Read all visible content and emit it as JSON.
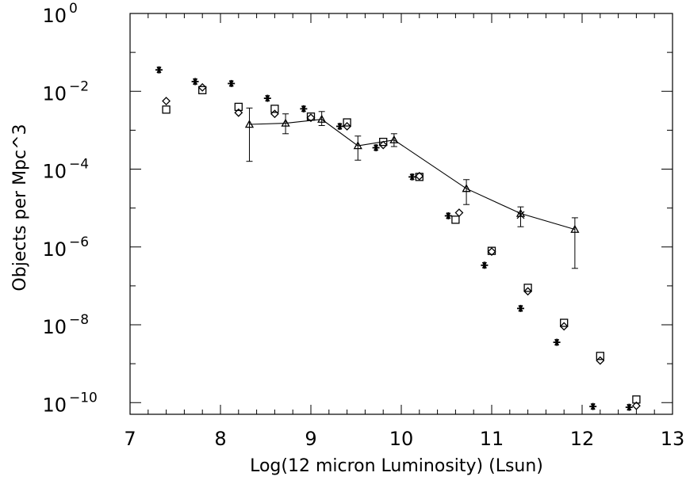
{
  "chart_data": {
    "type": "scatter",
    "xlabel": "Log(12 micron Luminosity) (Lsun)",
    "ylabel": "Objects per Mpc^3",
    "xlim": [
      7,
      13
    ],
    "ylim": [
      -10.3,
      0
    ],
    "yscale": "log10",
    "grid": false,
    "x_ticks": [
      "7",
      "8",
      "9",
      "10",
      "11",
      "12",
      "13"
    ],
    "y_ticks": [
      {
        "base": "10",
        "exp": "0",
        "value": 0
      },
      {
        "base": "10",
        "exp": "−2",
        "value": -2
      },
      {
        "base": "10",
        "exp": "−4",
        "value": -4
      },
      {
        "base": "10",
        "exp": "−6",
        "value": -6
      },
      {
        "base": "10",
        "exp": "−8",
        "value": -8
      },
      {
        "base": "10",
        "exp": "−10",
        "value": -10
      }
    ],
    "series": [
      {
        "marker": "asterisk",
        "points": [
          [
            7.32,
            -1.45
          ],
          [
            7.72,
            -1.75
          ],
          [
            8.12,
            -1.8
          ],
          [
            8.52,
            -2.18
          ],
          [
            8.92,
            -2.45
          ],
          [
            9.32,
            -2.9
          ],
          [
            9.72,
            -3.45
          ],
          [
            10.12,
            -4.2
          ],
          [
            10.52,
            -5.2
          ],
          [
            10.92,
            -6.47
          ],
          [
            11.32,
            -7.58
          ],
          [
            11.72,
            -8.45
          ],
          [
            12.12,
            -10.1
          ],
          [
            12.52,
            -10.12
          ]
        ]
      },
      {
        "marker": "diamond",
        "points": [
          [
            7.4,
            -2.25
          ],
          [
            7.8,
            -1.9
          ],
          [
            8.2,
            -2.55
          ],
          [
            8.6,
            -2.58
          ],
          [
            9.0,
            -2.68
          ],
          [
            9.4,
            -2.9
          ],
          [
            9.8,
            -3.38
          ],
          [
            10.2,
            -4.18
          ],
          [
            10.64,
            -5.12
          ],
          [
            11.0,
            -6.12
          ],
          [
            11.4,
            -7.14
          ],
          [
            11.8,
            -8.04
          ],
          [
            12.2,
            -8.92
          ],
          [
            12.6,
            -10.08
          ]
        ]
      },
      {
        "marker": "square",
        "points": [
          [
            7.4,
            -2.47
          ],
          [
            7.8,
            -1.97
          ],
          [
            8.2,
            -2.4
          ],
          [
            8.6,
            -2.45
          ],
          [
            9.0,
            -2.65
          ],
          [
            9.4,
            -2.8
          ],
          [
            9.8,
            -3.3
          ],
          [
            10.2,
            -4.2
          ],
          [
            10.6,
            -5.3
          ],
          [
            11.0,
            -6.1
          ],
          [
            11.4,
            -7.05
          ],
          [
            11.8,
            -7.95
          ],
          [
            12.2,
            -8.8
          ],
          [
            12.6,
            -9.92
          ]
        ]
      },
      {
        "marker": "triangle",
        "line": true,
        "points": [
          [
            8.32,
            -2.85,
            -2.43,
            -3.8
          ],
          [
            8.72,
            -2.82,
            -2.58,
            -3.09
          ],
          [
            9.12,
            -2.72,
            -2.52,
            -2.88
          ],
          [
            9.52,
            -3.4,
            -3.15,
            -3.77
          ],
          [
            9.92,
            -3.25,
            -3.09,
            -3.42
          ],
          [
            10.72,
            -4.5,
            -4.27,
            -4.91
          ],
          [
            11.32,
            -5.14,
            -4.97,
            -5.48
          ],
          [
            11.92,
            -5.55,
            -5.25,
            -6.55
          ]
        ]
      },
      {
        "marker": "cross",
        "points": [
          [
            11.32,
            -5.18
          ]
        ]
      }
    ]
  }
}
